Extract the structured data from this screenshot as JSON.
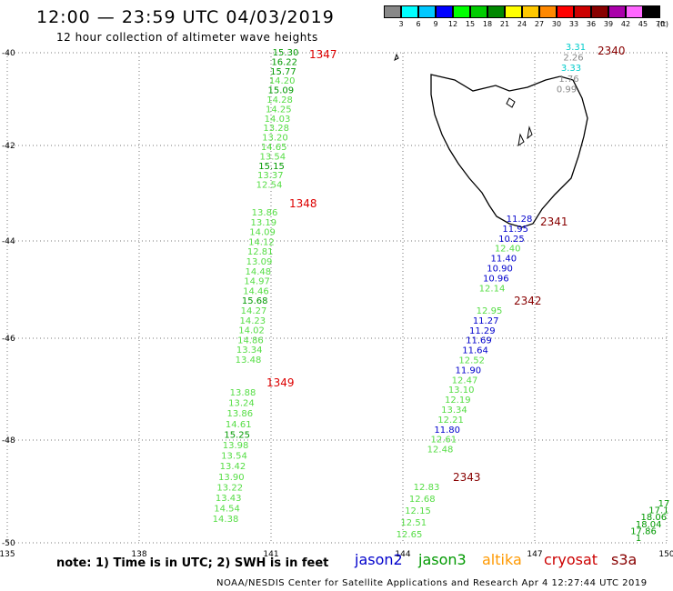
{
  "title": "12:00 — 23:59 UTC 04/03/2019",
  "subtitle": "12 hour collection of altimeter wave heights",
  "note": "note:  1) Time is in UTC;  2) SWH is in feet",
  "credit": "NOAA/NESDIS Center for Satellite Applications and Research    Apr  4 12:27:44 UTC 2019",
  "scale": {
    "unit": "(ft)",
    "labels": [
      "3",
      "6",
      "9",
      "12",
      "15",
      "18",
      "21",
      "24",
      "27",
      "30",
      "33",
      "36",
      "39",
      "42",
      "45",
      "70"
    ],
    "colors": [
      "#888888",
      "#00ffff",
      "#00c8ff",
      "#0000ff",
      "#00ff00",
      "#00cc00",
      "#008800",
      "#ffff00",
      "#ffc800",
      "#ff8800",
      "#ff0000",
      "#cc0000",
      "#880000",
      "#aa00aa",
      "#ff66ff",
      "#000000"
    ]
  },
  "satellites": [
    {
      "name": "jason2",
      "color": "#0000cc"
    },
    {
      "name": "jason3",
      "color": "#009900"
    },
    {
      "name": "altika",
      "color": "#ff9900"
    },
    {
      "name": "cryosat",
      "color": "#cc0000"
    },
    {
      "name": "s3a",
      "color": "#880000"
    }
  ],
  "axes": {
    "lat_labels": [
      "-40",
      "-42",
      "-44",
      "-46",
      "-48",
      "-50"
    ],
    "lon_labels": [
      "135",
      "138",
      "141",
      "144",
      "147",
      "150"
    ]
  },
  "tracks": [
    {
      "id": "1347",
      "label_color": "#dd0000",
      "values": [
        "15.30",
        "16.22",
        "15.77",
        "14.20",
        "15.09",
        "14.28",
        "14.25",
        "14.03",
        "13.28",
        "13.20",
        "14.65",
        "13.54",
        "15.15",
        "13.37",
        "12.54"
      ],
      "colors": [
        "g",
        "g",
        "g",
        "l",
        "g",
        "l",
        "l",
        "l",
        "l",
        "l",
        "l",
        "l",
        "g",
        "l",
        "l"
      ]
    },
    {
      "id": "1348",
      "label_color": "#dd0000",
      "values": [
        "13.86",
        "13.19",
        "14.09",
        "14.12",
        "12.81",
        "13.09",
        "14.48",
        "14.97",
        "14.46",
        "15.68",
        "14.27",
        "14.23",
        "14.02",
        "14.86",
        "13.34",
        "13.48"
      ],
      "colors": [
        "l",
        "l",
        "l",
        "l",
        "l",
        "l",
        "l",
        "l",
        "l",
        "g",
        "l",
        "l",
        "l",
        "l",
        "l",
        "l"
      ]
    },
    {
      "id": "1349",
      "label_color": "#dd0000",
      "values": [
        "13.88",
        "13.24",
        "13.86",
        "14.61",
        "15.25",
        "13.98",
        "13.54",
        "13.42",
        "13.90",
        "13.22",
        "13.43",
        "14.54",
        "14.38"
      ],
      "colors": [
        "l",
        "l",
        "l",
        "l",
        "g",
        "l",
        "l",
        "l",
        "l",
        "l",
        "l",
        "l",
        "l"
      ]
    },
    {
      "id": "2340",
      "label_color": "#880000",
      "values": [
        "3.31",
        "2.26",
        "3.33",
        "1.76",
        "0.99"
      ],
      "colors": [
        "c",
        "a",
        "c",
        "a",
        "a"
      ]
    },
    {
      "id": "2341",
      "label_color": "#880000",
      "values": [
        "11.28",
        "11.95",
        "10.25",
        "12.40",
        "11.40",
        "10.90",
        "10.96",
        "12.14"
      ],
      "colors": [
        "b",
        "b",
        "b",
        "l",
        "b",
        "b",
        "b",
        "l"
      ]
    },
    {
      "id": "2342",
      "label_color": "#880000",
      "values": [
        "12.95",
        "11.27",
        "11.29",
        "11.69",
        "11.64",
        "12.52",
        "11.90",
        "12.47",
        "13.10",
        "12.19",
        "13.34",
        "12.21",
        "11.80",
        "12.61",
        "12.48"
      ],
      "colors": [
        "l",
        "b",
        "b",
        "b",
        "b",
        "l",
        "b",
        "l",
        "l",
        "l",
        "l",
        "l",
        "b",
        "l",
        "l"
      ]
    },
    {
      "id": "2343",
      "label_color": "#880000",
      "values": [
        "12.83",
        "12.68",
        "12.15",
        "12.51",
        "12.65"
      ],
      "colors": [
        "l",
        "l",
        "l",
        "l",
        "l"
      ]
    },
    {
      "id": "right",
      "label_color": "#008800",
      "values": [
        "17",
        "17.1",
        "18.06",
        "18.04",
        "17.86",
        "1"
      ],
      "colors": [
        "g",
        "g",
        "g",
        "g",
        "g",
        "g"
      ]
    }
  ]
}
